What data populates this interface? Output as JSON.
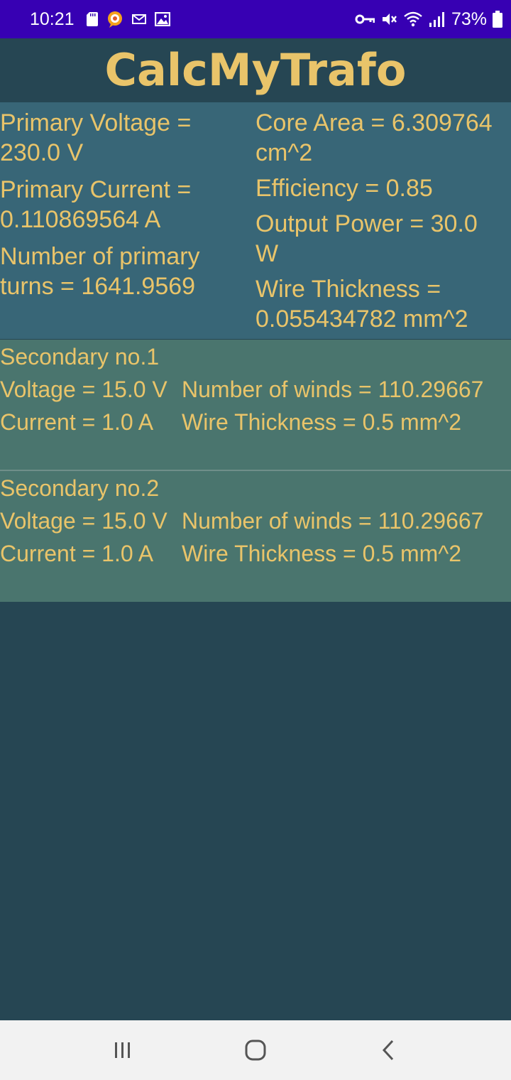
{
  "status_bar": {
    "time": "10:21",
    "battery": "73%",
    "icons_left": [
      "sd-card-icon",
      "chat-bubble-icon",
      "mail-icon",
      "image-icon"
    ],
    "icons_right": [
      "vpn-key-icon",
      "mute-icon",
      "wifi-icon",
      "signal-icon",
      "battery-icon"
    ],
    "background": "#3700B3"
  },
  "app": {
    "title": "CalcMyTrafo",
    "accent_color": "#E9C46A",
    "background": "#264653"
  },
  "primary": {
    "background": "#386677",
    "left": [
      "Primary Voltage =\n230.0 V",
      "Primary Current =\n0.110869564 A",
      "Number of primary\nturns = 1641.9569"
    ],
    "right": [
      "Core Area = 6.309764\ncm^2",
      "Efficiency = 0.85",
      "Output Power = 30.0\nW",
      "Wire Thickness =\n0.055434782 mm^2"
    ]
  },
  "secondaries": [
    {
      "title": "Secondary no.1",
      "voltage": "Voltage = 15.0 V",
      "winds": "Number of winds = 110.29667",
      "current": "Current = 1.0 A",
      "wire": "Wire Thickness = 0.5 mm^2"
    },
    {
      "title": "Secondary no.2",
      "voltage": "Voltage = 15.0 V",
      "winds": "Number of winds = 110.29667",
      "current": "Current = 1.0 A",
      "wire": "Wire Thickness = 0.5 mm^2"
    }
  ],
  "nav_bar": {
    "buttons": [
      "recent-apps-icon",
      "home-icon",
      "back-icon"
    ]
  }
}
